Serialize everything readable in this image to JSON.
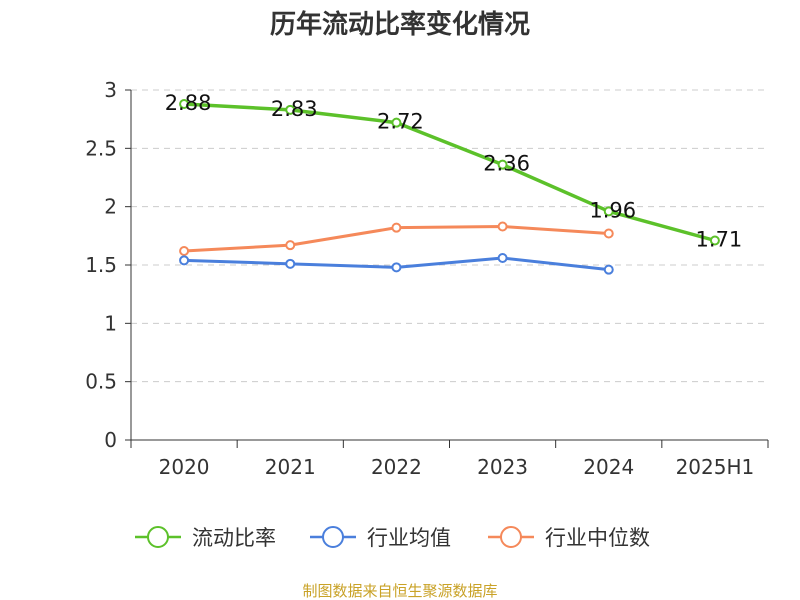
{
  "chart_data": {
    "type": "line",
    "title": "历年流动比率变化情况",
    "categories": [
      "2020",
      "2021",
      "2022",
      "2023",
      "2024",
      "2025H1"
    ],
    "ylim": [
      0,
      3
    ],
    "yticks": [
      "0",
      "0.5",
      "1",
      "1.5",
      "2",
      "2.5",
      "3"
    ],
    "grid": true,
    "legend_position": "bottom",
    "series": [
      {
        "name": "流动比率",
        "color": "#5cc12a",
        "values": [
          2.88,
          2.83,
          2.72,
          2.36,
          1.96,
          1.71
        ],
        "labels": [
          "2.88",
          "2.83",
          "2.72",
          "2.36",
          "1.96",
          "1.71"
        ]
      },
      {
        "name": "行业均值",
        "color": "#4a7fdc",
        "values": [
          1.54,
          1.51,
          1.48,
          1.56,
          1.46,
          null
        ]
      },
      {
        "name": "行业中位数",
        "color": "#f5895a",
        "values": [
          1.62,
          1.67,
          1.82,
          1.83,
          1.77,
          null
        ]
      }
    ],
    "source": "制图数据来自恒生聚源数据库"
  }
}
